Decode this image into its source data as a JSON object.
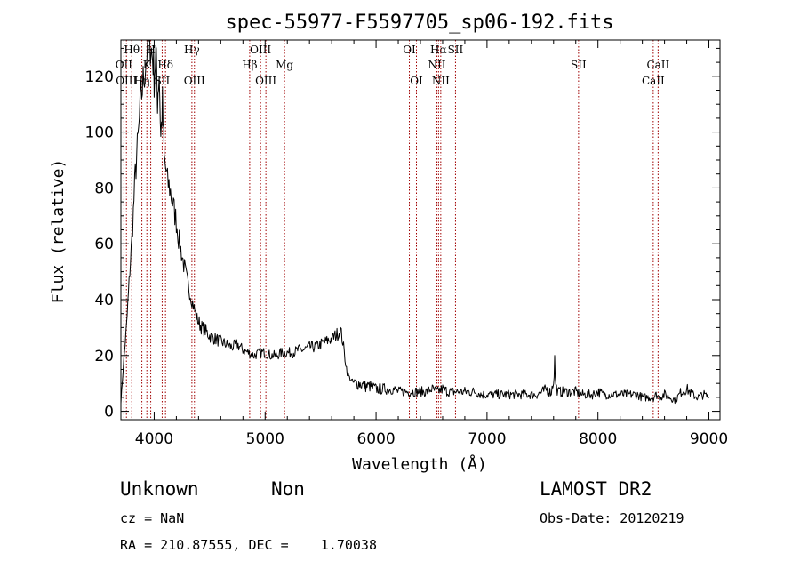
{
  "chart_data": {
    "type": "line",
    "title": "spec-55977-F5597705_sp06-192.fits",
    "xlabel": "Wavelength (Å)",
    "ylabel": "Flux (relative)",
    "xlim": [
      3700,
      9100
    ],
    "ylim": [
      -3,
      133
    ],
    "xticks": [
      4000,
      5000,
      6000,
      7000,
      8000,
      9000
    ],
    "yticks": [
      0,
      20,
      40,
      60,
      80,
      100,
      120
    ],
    "grid": false,
    "series": [
      {
        "x": [
          3700,
          3720,
          3750,
          3780,
          3800,
          3830,
          3860,
          3880,
          3900,
          3920,
          3940,
          3960,
          3975,
          3990,
          4000,
          4015,
          4030,
          4045,
          4060,
          4075,
          4090,
          4100,
          4120,
          4140,
          4160,
          4180,
          4200,
          4220,
          4240,
          4260,
          4280,
          4300,
          4320,
          4340,
          4360,
          4380,
          4400,
          4430,
          4460,
          4500,
          4550,
          4600,
          4650,
          4700,
          4750,
          4800,
          4850,
          4900,
          4950,
          5000,
          5050,
          5100,
          5150,
          5200,
          5250,
          5300,
          5350,
          5400,
          5450,
          5500,
          5550,
          5600,
          5630,
          5660,
          5680,
          5700,
          5720,
          5740,
          5760,
          5780,
          5800,
          5850,
          5900,
          5950,
          6000,
          6050,
          6100,
          6150,
          6200,
          6250,
          6300,
          6350,
          6400,
          6450,
          6500,
          6550,
          6600,
          6650,
          6700,
          6750,
          6800,
          6850,
          6900,
          6950,
          7000,
          7050,
          7100,
          7150,
          7200,
          7250,
          7300,
          7350,
          7400,
          7450,
          7500,
          7540,
          7560,
          7580,
          7600,
          7610,
          7620,
          7640,
          7660,
          7700,
          7750,
          7800,
          7850,
          7900,
          7950,
          8000,
          8050,
          8100,
          8150,
          8200,
          8250,
          8300,
          8350,
          8400,
          8450,
          8500,
          8530,
          8550,
          8600,
          8650,
          8700,
          8750,
          8800,
          8850,
          8900,
          8950,
          9000
        ],
        "y": [
          3,
          15,
          30,
          50,
          62,
          85,
          100,
          112,
          118,
          124,
          130,
          134,
          129,
          126,
          120,
          128,
          112,
          122,
          98,
          110,
          90,
          88,
          82,
          80,
          76,
          72,
          68,
          62,
          58,
          54,
          50,
          46,
          43,
          40,
          37,
          34,
          32,
          30,
          29,
          27,
          26,
          25,
          24,
          23,
          24,
          22,
          21,
          20,
          21,
          21,
          20,
          20,
          21,
          21,
          21,
          22,
          22,
          23,
          23,
          24,
          25,
          26,
          27,
          28,
          29,
          25,
          19,
          14,
          12,
          11,
          10,
          10,
          9,
          9,
          8,
          8,
          8,
          8,
          7,
          7,
          7,
          7,
          7,
          7,
          8,
          7,
          8,
          7,
          7,
          7,
          7,
          7,
          7,
          6,
          6,
          6,
          6,
          6,
          6,
          6,
          6,
          6,
          6,
          6,
          7,
          8,
          7,
          7,
          11,
          18,
          9,
          7,
          7,
          7,
          7,
          7,
          6,
          6,
          6,
          7,
          6,
          6,
          6,
          6,
          6,
          6,
          6,
          5,
          5,
          5,
          6,
          5,
          6,
          5,
          4,
          7,
          8,
          6,
          5,
          6,
          5
        ]
      }
    ],
    "lines": [
      {
        "wl": 3727,
        "label": "OII",
        "row": 1
      },
      {
        "wl": 3750,
        "label": "OIII",
        "row": 2
      },
      {
        "wl": 3798,
        "label": "Hθ",
        "row": 0
      },
      {
        "wl": 3889,
        "label": "Hη",
        "row": 2
      },
      {
        "wl": 3934,
        "label": "K",
        "row": 1
      },
      {
        "wl": 3969,
        "label": "H",
        "row": 0
      },
      {
        "wl": 4072,
        "label": "SII",
        "row": 2
      },
      {
        "wl": 4102,
        "label": "Hδ",
        "row": 1
      },
      {
        "wl": 4340,
        "label": "Hγ",
        "row": 0
      },
      {
        "wl": 4363,
        "label": "OIII",
        "row": 2
      },
      {
        "wl": 4861,
        "label": "Hβ",
        "row": 1
      },
      {
        "wl": 4959,
        "label": "OIII",
        "row": 0
      },
      {
        "wl": 5007,
        "label": "OIII",
        "row": 2
      },
      {
        "wl": 5175,
        "label": "Mg",
        "row": 1
      },
      {
        "wl": 6300,
        "label": "OI",
        "row": 0
      },
      {
        "wl": 6364,
        "label": "OI",
        "row": 2
      },
      {
        "wl": 6548,
        "label": "NII",
        "row": 1
      },
      {
        "wl": 6563,
        "label": "Hα",
        "row": 0
      },
      {
        "wl": 6583,
        "label": "NII",
        "row": 2
      },
      {
        "wl": 6716,
        "label": "SII",
        "row": 0
      },
      {
        "wl": 7825,
        "label": "SII",
        "row": 1
      },
      {
        "wl": 8498,
        "label": "CaII",
        "row": 2
      },
      {
        "wl": 8542,
        "label": "CaII",
        "row": 1
      }
    ]
  },
  "footer": {
    "object_class": "Unknown",
    "subclass": "Non",
    "cz": "cz = NaN",
    "coords": "RA = 210.87555, DEC =    1.70038",
    "survey": "LAMOST DR2",
    "obs_date": "Obs-Date: 20120219"
  }
}
